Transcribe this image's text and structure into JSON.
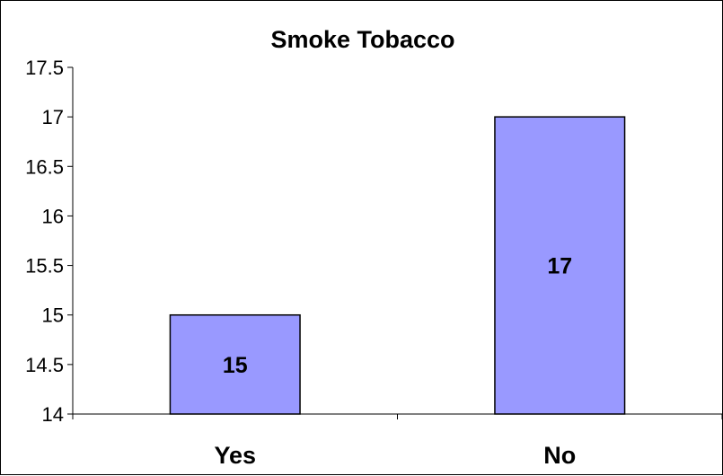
{
  "chart_data": {
    "type": "bar",
    "title": "Smoke Tobacco",
    "categories": [
      "Yes",
      "No"
    ],
    "values": [
      15,
      17
    ],
    "data_labels": [
      "15",
      "17"
    ],
    "xlabel": "",
    "ylabel": "",
    "ylim": [
      14,
      17.5
    ],
    "yticks": [
      14,
      14.5,
      15,
      15.5,
      16,
      16.5,
      17,
      17.5
    ],
    "ytick_labels": [
      "14",
      "14.5",
      "15",
      "15.5",
      "16",
      "16.5",
      "17",
      "17.5"
    ],
    "grid": false,
    "legend": "none",
    "bar_color": "#9999ff",
    "bar_edge_color": "#000000"
  }
}
